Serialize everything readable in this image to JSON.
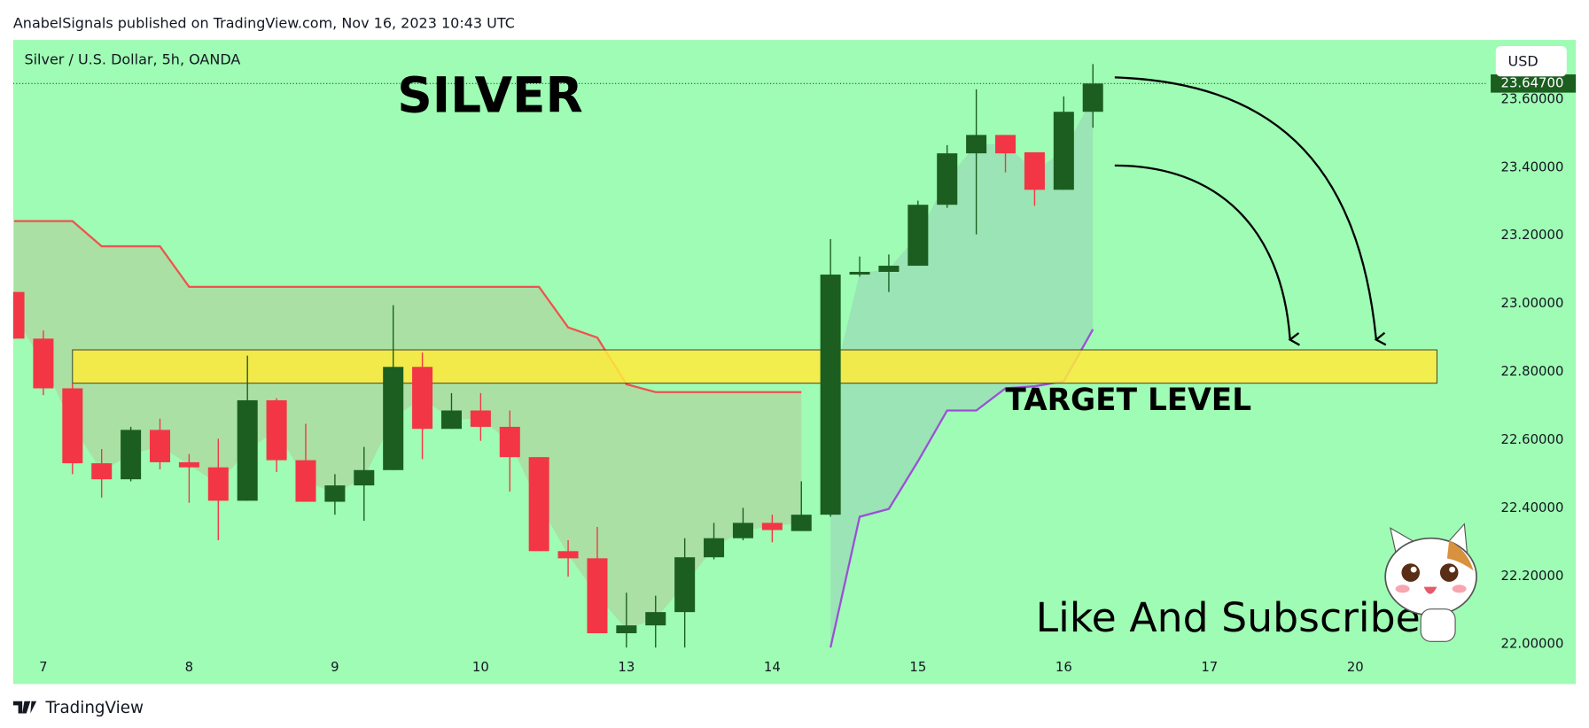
{
  "header": {
    "published": "AnabelSignals published on TradingView.com, Nov 16, 2023 10:43 UTC",
    "footer": "TradingView"
  },
  "chart_data": {
    "type": "candlestick",
    "title": "Silver / U.S. Dollar, 5h, OANDA",
    "currency": "USD",
    "up_color": "#1b5e20",
    "down_color": "#f23645",
    "x": [
      0,
      1,
      2,
      3,
      4,
      5,
      6,
      7,
      8,
      9,
      10,
      11,
      12,
      13,
      14,
      15,
      16,
      17,
      18,
      19,
      20,
      21,
      22,
      23,
      24,
      25,
      26,
      27,
      28,
      29,
      30,
      31,
      32,
      33,
      34,
      35,
      36,
      37
    ],
    "open": [
      23.035,
      22.898,
      22.752,
      22.532,
      22.485,
      22.63,
      22.535,
      22.52,
      22.422,
      22.717,
      22.541,
      22.419,
      22.467,
      22.512,
      22.815,
      22.633,
      22.687,
      22.639,
      22.55,
      22.274,
      22.253,
      22.033,
      22.056,
      22.095,
      22.256,
      22.312,
      22.357,
      22.333,
      22.381,
      23.086,
      23.094,
      23.112,
      23.291,
      23.442,
      23.496,
      23.445,
      23.335,
      23.564
    ],
    "high": [
      23.035,
      22.922,
      22.767,
      22.574,
      22.639,
      22.663,
      22.559,
      22.604,
      22.848,
      22.723,
      22.648,
      22.5,
      22.58,
      22.996,
      22.857,
      22.738,
      22.738,
      22.687,
      22.55,
      22.306,
      22.345,
      22.152,
      22.143,
      22.312,
      22.357,
      22.401,
      22.381,
      22.479,
      23.19,
      23.139,
      23.145,
      23.303,
      23.466,
      23.63,
      23.496,
      23.445,
      23.609,
      23.704
    ],
    "low": [
      22.898,
      22.732,
      22.5,
      22.431,
      22.479,
      22.514,
      22.416,
      22.306,
      22.422,
      22.506,
      22.419,
      22.381,
      22.363,
      22.512,
      22.544,
      22.633,
      22.598,
      22.449,
      22.274,
      22.199,
      22.033,
      21.991,
      21.991,
      21.991,
      22.25,
      22.306,
      22.3,
      22.333,
      22.375,
      23.08,
      23.035,
      23.112,
      23.282,
      23.204,
      23.386,
      23.288,
      23.335,
      23.517
    ],
    "close": [
      22.898,
      22.752,
      22.532,
      22.485,
      22.63,
      22.535,
      22.52,
      22.422,
      22.717,
      22.541,
      22.419,
      22.467,
      22.512,
      22.815,
      22.633,
      22.687,
      22.639,
      22.55,
      22.274,
      22.253,
      22.033,
      22.056,
      22.095,
      22.256,
      22.312,
      22.357,
      22.336,
      22.381,
      23.086,
      23.094,
      23.112,
      23.291,
      23.442,
      23.496,
      23.442,
      23.335,
      23.564,
      23.647
    ],
    "overlays": [
      {
        "color": "#f0524f",
        "fill": "#f23645",
        "values": [
          23.243,
          23.243,
          23.243,
          23.169,
          23.169,
          23.169,
          23.05,
          23.05,
          23.05,
          23.05,
          23.05,
          23.05,
          23.05,
          23.05,
          23.05,
          23.05,
          23.05,
          23.05,
          23.05,
          22.931,
          22.901,
          22.764,
          22.741,
          22.741,
          22.741,
          22.741,
          22.741,
          22.741,
          null,
          null,
          null,
          null,
          null,
          null,
          null,
          null,
          null,
          null
        ]
      },
      {
        "color": "#9c4fd6",
        "fill": "#7e57c2",
        "values": [
          null,
          null,
          null,
          null,
          null,
          null,
          null,
          null,
          null,
          null,
          null,
          null,
          null,
          null,
          null,
          null,
          null,
          null,
          null,
          null,
          null,
          null,
          null,
          null,
          null,
          null,
          null,
          null,
          21.991,
          22.375,
          22.398,
          22.538,
          22.687,
          22.687,
          22.752,
          22.758,
          22.773,
          22.925
        ]
      }
    ],
    "target_zone": {
      "label": "TARGET LEVEL",
      "top": 22.865,
      "bottom": 22.767,
      "x_start": 2,
      "x_end": 48.8,
      "color": "#ffeb3b"
    },
    "last_price": {
      "value": 23.647,
      "label": "23.64700"
    },
    "xlim": [
      -0.035,
      50.54
    ],
    "ylim": [
      21.979,
      23.775
    ],
    "xticks": [
      {
        "value": 1,
        "label": "7"
      },
      {
        "value": 6,
        "label": "8"
      },
      {
        "value": 11,
        "label": "9"
      },
      {
        "value": 16,
        "label": "10"
      },
      {
        "value": 21,
        "label": "13"
      },
      {
        "value": 26,
        "label": "14"
      },
      {
        "value": 31,
        "label": "15"
      },
      {
        "value": 36,
        "label": "16"
      },
      {
        "value": 41,
        "label": "17"
      },
      {
        "value": 46,
        "label": "20"
      }
    ],
    "yticks": [
      {
        "value": 22.0,
        "label": "22.00000"
      },
      {
        "value": 22.2,
        "label": "22.20000"
      },
      {
        "value": 22.4,
        "label": "22.40000"
      },
      {
        "value": 22.6,
        "label": "22.60000"
      },
      {
        "value": 22.8,
        "label": "22.80000"
      },
      {
        "value": 23.0,
        "label": "23.00000"
      },
      {
        "value": 23.2,
        "label": "23.20000"
      },
      {
        "value": 23.4,
        "label": "23.40000"
      },
      {
        "value": 23.6,
        "label": "23.60000"
      }
    ],
    "annotations": [
      "SILVER",
      "Like And Subscribe"
    ]
  }
}
